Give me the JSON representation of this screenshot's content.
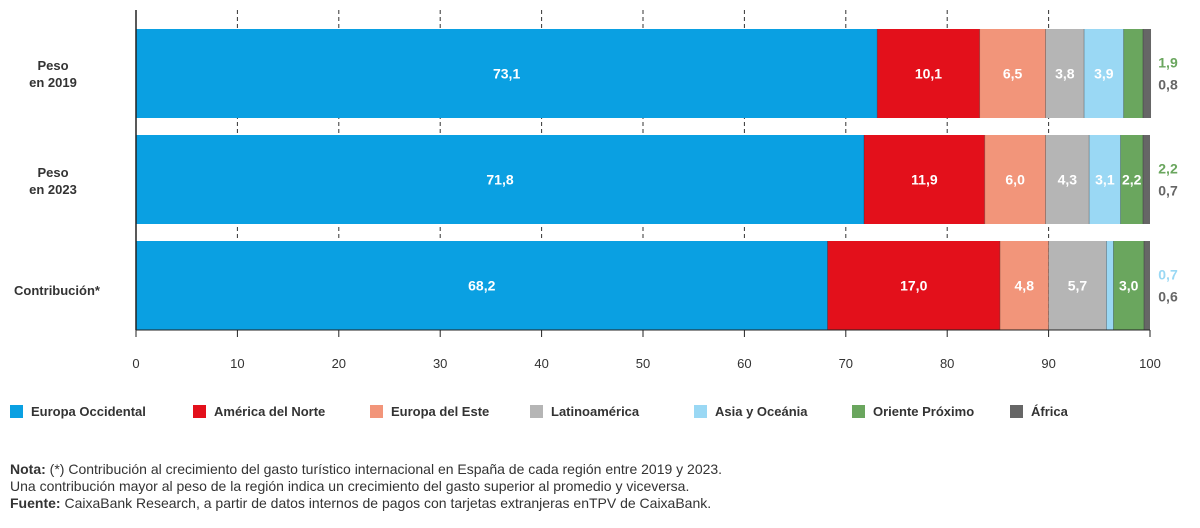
{
  "chart_data": {
    "type": "bar",
    "orientation": "horizontal",
    "stacked": true,
    "categories": [
      "Peso en 2019",
      "Peso en 2023",
      "Contribución*"
    ],
    "category_lines": [
      [
        "Peso",
        "en 2019"
      ],
      [
        "Peso",
        "en 2023"
      ],
      [
        "Contribución*"
      ]
    ],
    "xlim": [
      0,
      100
    ],
    "xticks": [
      "0",
      "10",
      "20",
      "30",
      "40",
      "50",
      "60",
      "70",
      "80",
      "90",
      "100"
    ],
    "series": [
      {
        "name": "Europa Occidental",
        "color": "#0aa0e2",
        "values": [
          73.1,
          71.8,
          68.2
        ],
        "labels": [
          "73,1",
          "71,8",
          "68,2"
        ],
        "label_color": "#ffffff"
      },
      {
        "name": "América del Norte",
        "color": "#e3101b",
        "values": [
          10.1,
          11.9,
          17.0
        ],
        "labels": [
          "10,1",
          "11,9",
          "17,0"
        ],
        "label_color": "#ffffff"
      },
      {
        "name": "Europa del Este",
        "color": "#f2957a",
        "values": [
          6.5,
          6.0,
          4.8
        ],
        "labels": [
          "6,5",
          "6,0",
          "4,8"
        ],
        "label_color": "#ffffff"
      },
      {
        "name": "Latinoamérica",
        "color": "#b5b5b5",
        "values": [
          3.8,
          4.3,
          5.7
        ],
        "labels": [
          "3,8",
          "4,3",
          "5,7"
        ],
        "label_color": "#ffffff"
      },
      {
        "name": "Asia y Oceánia",
        "color": "#9ad8f4",
        "values": [
          3.9,
          3.1,
          0.7
        ],
        "labels": [
          "3,9",
          "3,1",
          "0,7"
        ],
        "label_color": "#ffffff"
      },
      {
        "name": "Oriente Próximo",
        "color": "#6aa65e",
        "values": [
          1.9,
          2.2,
          3.0
        ],
        "labels": [
          "1,9",
          "2,2",
          "3,0"
        ],
        "label_color": "#ffffff"
      },
      {
        "name": "África",
        "color": "#666666",
        "values": [
          0.8,
          0.7,
          0.6
        ],
        "labels": [
          "0,8",
          "0,7",
          "0,6"
        ],
        "label_color": "#666666"
      }
    ],
    "outside_labels": [
      [
        {
          "text": "1,9",
          "color": "#6aa65e"
        },
        {
          "text": "0,8",
          "color": "#666666"
        }
      ],
      [
        {
          "text": "2,2",
          "color": "#6aa65e"
        },
        {
          "text": "0,7",
          "color": "#666666"
        }
      ],
      [
        {
          "text": "0,7",
          "color": "#9ad8f4"
        },
        {
          "text": "0,6",
          "color": "#666666"
        }
      ]
    ],
    "grid": "vertical-dashed"
  },
  "legend": [
    {
      "label": "Europa Occidental",
      "color": "#0aa0e2"
    },
    {
      "label": "América del Norte",
      "color": "#e3101b"
    },
    {
      "label": "Europa del Este",
      "color": "#f2957a"
    },
    {
      "label": "Latinoamérica",
      "color": "#b5b5b5"
    },
    {
      "label": "Asia y Oceánia",
      "color": "#9ad8f4"
    },
    {
      "label": "Oriente Próximo",
      "color": "#6aa65e"
    },
    {
      "label": "África",
      "color": "#666666"
    }
  ],
  "notes": {
    "nota_label": "Nota:",
    "nota_text": " (*) Contribución al crecimiento del gasto turístico internacional en España de cada región entre 2019 y 2023.",
    "line2": "Una contribución mayor al peso de la región indica un crecimiento del gasto superior al promedio y viceversa.",
    "fuente_label": "Fuente:",
    "fuente_text": " CaixaBank Research, a partir de datos internos de pagos con tarjetas extranjeras enTPV de CaixaBank."
  }
}
